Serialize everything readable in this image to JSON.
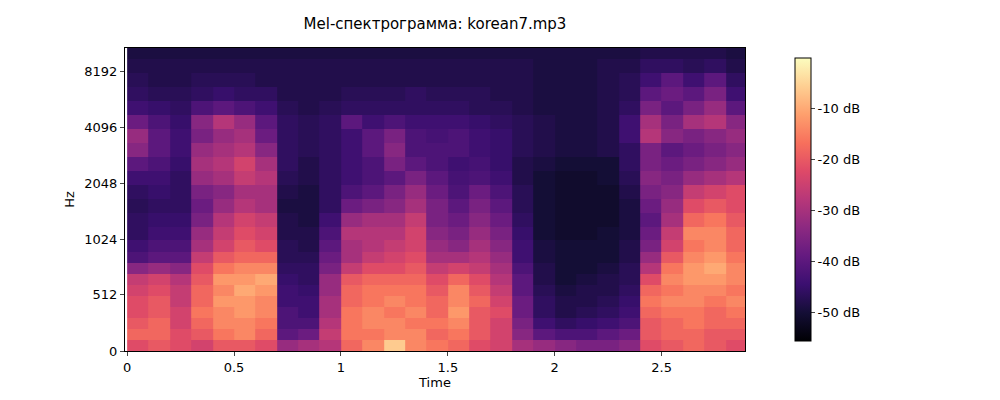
{
  "chart_data": {
    "type": "heatmap",
    "title": "Mel-спектрограмма: korean7.mp3",
    "x_label": "Time",
    "y_label": "Hz",
    "xlim": [
      -0.01,
      2.89
    ],
    "xticks": [
      0,
      0.5,
      1,
      1.5,
      2,
      2.5
    ],
    "ylim": [
      0,
      11025
    ],
    "yticks": [
      0,
      512,
      1024,
      2048,
      4096,
      8192
    ],
    "times": [
      0.05,
      0.15,
      0.25,
      0.35,
      0.45,
      0.55,
      0.65,
      0.75,
      0.85,
      0.95,
      1.05,
      1.15,
      1.25,
      1.35,
      1.45,
      1.55,
      1.65,
      1.75,
      1.85,
      1.95,
      2.05,
      2.15,
      2.25,
      2.35,
      2.45,
      2.55,
      2.65,
      2.75,
      2.85
    ],
    "frequencies": [
      50,
      150,
      250,
      350,
      450,
      550,
      650,
      750,
      850,
      950,
      1100,
      1300,
      1550,
      1850,
      2200,
      2600,
      3100,
      3700,
      4400,
      5200,
      6200,
      7400,
      8800,
      10400
    ],
    "z": [
      [
        -22,
        -20,
        -22,
        -24,
        -20,
        -20,
        -22,
        -32,
        -30,
        -28,
        -18,
        -14,
        -6,
        -14,
        -16,
        -18,
        -22,
        -24,
        -30,
        -32,
        -34,
        -36,
        -36,
        -34,
        -22,
        -20,
        -18,
        -20,
        -22
      ],
      [
        -18,
        -18,
        -22,
        -20,
        -16,
        -14,
        -18,
        -40,
        -38,
        -26,
        -16,
        -16,
        -14,
        -14,
        -18,
        -16,
        -20,
        -24,
        -34,
        -40,
        -42,
        -42,
        -40,
        -38,
        -20,
        -18,
        -18,
        -20,
        -20
      ],
      [
        -20,
        -18,
        -24,
        -18,
        -14,
        -14,
        -16,
        -42,
        -42,
        -28,
        -16,
        -14,
        -14,
        -16,
        -16,
        -14,
        -20,
        -24,
        -36,
        -44,
        -46,
        -45,
        -44,
        -42,
        -20,
        -18,
        -16,
        -18,
        -18
      ],
      [
        -22,
        -20,
        -24,
        -16,
        -14,
        -12,
        -14,
        -42,
        -44,
        -30,
        -16,
        -14,
        -16,
        -14,
        -18,
        -12,
        -20,
        -22,
        -38,
        -46,
        -48,
        -47,
        -46,
        -44,
        -18,
        -16,
        -16,
        -18,
        -16
      ],
      [
        -22,
        -20,
        -26,
        -18,
        -12,
        -12,
        -14,
        -44,
        -44,
        -30,
        -18,
        -16,
        -14,
        -16,
        -18,
        -14,
        -18,
        -24,
        -38,
        -46,
        -48,
        -48,
        -47,
        -45,
        -16,
        -14,
        -14,
        -16,
        -14
      ],
      [
        -24,
        -22,
        -26,
        -18,
        -14,
        -10,
        -12,
        -44,
        -45,
        -32,
        -18,
        -16,
        -16,
        -16,
        -20,
        -14,
        -20,
        -26,
        -40,
        -47,
        -49,
        -48,
        -48,
        -46,
        -18,
        -16,
        -14,
        -14,
        -16
      ],
      [
        -26,
        -24,
        -28,
        -20,
        -12,
        -12,
        -10,
        -45,
        -46,
        -32,
        -20,
        -18,
        -18,
        -18,
        -22,
        -18,
        -22,
        -28,
        -40,
        -48,
        -50,
        -49,
        -48,
        -47,
        -22,
        -14,
        -12,
        -12,
        -14
      ],
      [
        -34,
        -32,
        -34,
        -22,
        -16,
        -14,
        -14,
        -46,
        -46,
        -36,
        -26,
        -22,
        -22,
        -20,
        -26,
        -24,
        -26,
        -30,
        -42,
        -48,
        -50,
        -50,
        -49,
        -47,
        -28,
        -16,
        -12,
        -10,
        -14
      ],
      [
        -42,
        -40,
        -40,
        -26,
        -20,
        -18,
        -18,
        -47,
        -47,
        -38,
        -30,
        -26,
        -24,
        -22,
        -30,
        -30,
        -28,
        -32,
        -44,
        -49,
        -50,
        -50,
        -50,
        -48,
        -32,
        -20,
        -14,
        -12,
        -16
      ],
      [
        -44,
        -42,
        -42,
        -30,
        -24,
        -20,
        -22,
        -47,
        -48,
        -40,
        -30,
        -28,
        -26,
        -24,
        -32,
        -34,
        -30,
        -34,
        -44,
        -49,
        -50,
        -50,
        -50,
        -48,
        -36,
        -24,
        -16,
        -14,
        -18
      ],
      [
        -46,
        -44,
        -44,
        -32,
        -26,
        -22,
        -24,
        -48,
        -48,
        -42,
        -28,
        -28,
        -28,
        -24,
        -34,
        -36,
        -32,
        -36,
        -45,
        -50,
        -51,
        -51,
        -50,
        -49,
        -38,
        -26,
        -14,
        -14,
        -18
      ],
      [
        -46,
        -45,
        -45,
        -36,
        -28,
        -24,
        -26,
        -48,
        -49,
        -44,
        -32,
        -30,
        -30,
        -26,
        -36,
        -38,
        -34,
        -38,
        -46,
        -50,
        -51,
        -51,
        -51,
        -49,
        -40,
        -30,
        -18,
        -16,
        -20
      ],
      [
        -47,
        -46,
        -46,
        -38,
        -32,
        -28,
        -30,
        -49,
        -49,
        -46,
        -38,
        -36,
        -34,
        -30,
        -36,
        -40,
        -36,
        -40,
        -47,
        -50,
        -51,
        -51,
        -51,
        -49,
        -38,
        -32,
        -22,
        -20,
        -22
      ],
      [
        -46,
        -45,
        -46,
        -36,
        -34,
        -30,
        -30,
        -48,
        -49,
        -46,
        -42,
        -40,
        -36,
        -32,
        -38,
        -42,
        -38,
        -42,
        -47,
        -50,
        -51,
        -51,
        -51,
        -48,
        -36,
        -34,
        -26,
        -24,
        -22
      ],
      [
        -44,
        -44,
        -46,
        -32,
        -30,
        -26,
        -28,
        -47,
        -48,
        -46,
        -44,
        -42,
        -40,
        -36,
        -40,
        -43,
        -42,
        -44,
        -48,
        -50,
        -51,
        -51,
        -50,
        -47,
        -34,
        -36,
        -32,
        -30,
        -28
      ],
      [
        -40,
        -42,
        -45,
        -30,
        -28,
        -24,
        -30,
        -46,
        -48,
        -46,
        -44,
        -42,
        -36,
        -40,
        -42,
        -44,
        -43,
        -45,
        -48,
        -49,
        -50,
        -50,
        -50,
        -46,
        -36,
        -38,
        -36,
        -34,
        -32
      ],
      [
        -34,
        -40,
        -44,
        -32,
        -30,
        -28,
        -34,
        -46,
        -47,
        -46,
        -44,
        -40,
        -34,
        -42,
        -42,
        -42,
        -44,
        -45,
        -47,
        -48,
        -49,
        -49,
        -48,
        -46,
        -36,
        -40,
        -38,
        -36,
        -34
      ],
      [
        -32,
        -40,
        -44,
        -36,
        -32,
        -30,
        -38,
        -46,
        -47,
        -46,
        -44,
        -40,
        -36,
        -42,
        -43,
        -42,
        -44,
        -45,
        -47,
        -48,
        -49,
        -49,
        -48,
        -44,
        -28,
        -34,
        -36,
        -34,
        -32
      ],
      [
        -38,
        -42,
        -45,
        -34,
        -28,
        -32,
        -40,
        -46,
        -47,
        -46,
        -40,
        -44,
        -42,
        -44,
        -44,
        -44,
        -45,
        -46,
        -47,
        -48,
        -49,
        -49,
        -48,
        -44,
        -30,
        -36,
        -30,
        -28,
        -34
      ],
      [
        -44,
        -45,
        -46,
        -42,
        -40,
        -42,
        -44,
        -47,
        -48,
        -47,
        -46,
        -46,
        -46,
        -46,
        -46,
        -46,
        -47,
        -47,
        -48,
        -49,
        -49,
        -49,
        -48,
        -46,
        -36,
        -40,
        -36,
        -32,
        -40
      ],
      [
        -46,
        -47,
        -47,
        -46,
        -45,
        -46,
        -46,
        -48,
        -48,
        -48,
        -47,
        -47,
        -47,
        -46,
        -47,
        -47,
        -47,
        -48,
        -48,
        -49,
        -49,
        -49,
        -48,
        -47,
        -40,
        -38,
        -40,
        -36,
        -44
      ],
      [
        -47,
        -48,
        -48,
        -47,
        -47,
        -47,
        -48,
        -48,
        -48,
        -48,
        -48,
        -48,
        -48,
        -48,
        -48,
        -48,
        -48,
        -48,
        -48,
        -49,
        -49,
        -49,
        -48,
        -47,
        -44,
        -40,
        -44,
        -40,
        -46
      ],
      [
        -48,
        -48,
        -48,
        -48,
        -48,
        -48,
        -48,
        -48,
        -48,
        -48,
        -48,
        -48,
        -48,
        -48,
        -48,
        -48,
        -48,
        -48,
        -48,
        -49,
        -49,
        -49,
        -48,
        -48,
        -46,
        -46,
        -47,
        -46,
        -48
      ],
      [
        -49,
        -49,
        -49,
        -49,
        -49,
        -49,
        -49,
        -49,
        -49,
        -49,
        -49,
        -49,
        -49,
        -49,
        -49,
        -49,
        -49,
        -49,
        -49,
        -49,
        -49,
        -49,
        -49,
        -49,
        -48,
        -48,
        -48,
        -48,
        -49
      ]
    ],
    "colorbar_range": [
      -55.6,
      0
    ],
    "colorbar_ticks": [
      {
        "value": -10,
        "label": "-10 dB"
      },
      {
        "value": -20,
        "label": "-20 dB"
      },
      {
        "value": -30,
        "label": "-30 dB"
      },
      {
        "value": -40,
        "label": "-40 dB"
      },
      {
        "value": -50,
        "label": "-50 dB"
      }
    ]
  }
}
